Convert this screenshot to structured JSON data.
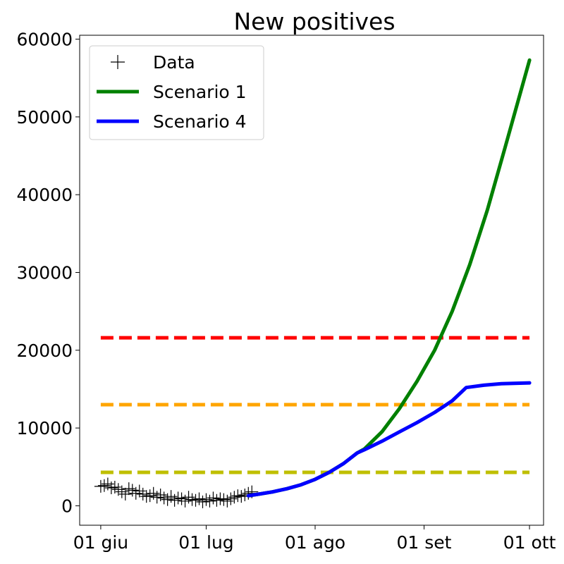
{
  "chart_data": {
    "type": "line",
    "title": "New positives",
    "xlabel": "",
    "ylabel": "",
    "x_ticks": [
      "01 giu",
      "01 lug",
      "01 ago",
      "01 set",
      "01 ott"
    ],
    "xlim_days": [
      -6,
      126
    ],
    "ylim": [
      -2500,
      60500
    ],
    "y_ticks": [
      0,
      10000,
      20000,
      30000,
      40000,
      50000,
      60000
    ],
    "grid": false,
    "legend": {
      "placement": "top-left",
      "entries": [
        "Data",
        "Scenario 1",
        "Scenario 4"
      ]
    },
    "data_points": {
      "name": "Data",
      "marker": "+",
      "color": "#000000",
      "x": [
        "2020-06-01",
        "2020-06-02",
        "2020-06-03",
        "2020-06-04",
        "2020-06-05",
        "2020-06-06",
        "2020-06-07",
        "2020-06-08",
        "2020-06-09",
        "2020-06-10",
        "2020-06-11",
        "2020-06-12",
        "2020-06-13",
        "2020-06-14",
        "2020-06-15",
        "2020-06-16",
        "2020-06-17",
        "2020-06-18",
        "2020-06-19",
        "2020-06-20",
        "2020-06-21",
        "2020-06-22",
        "2020-06-23",
        "2020-06-24",
        "2020-06-25",
        "2020-06-26",
        "2020-06-27",
        "2020-06-28",
        "2020-06-29",
        "2020-06-30",
        "2020-07-01",
        "2020-07-02",
        "2020-07-03",
        "2020-07-04",
        "2020-07-05",
        "2020-07-06",
        "2020-07-07",
        "2020-07-08",
        "2020-07-09",
        "2020-07-10",
        "2020-07-11",
        "2020-07-12",
        "2020-07-13",
        "2020-07-14"
      ],
      "y": [
        2500,
        2600,
        2800,
        2300,
        2400,
        2100,
        1800,
        1500,
        2200,
        2000,
        1600,
        1900,
        1500,
        1200,
        1300,
        1600,
        1100,
        1400,
        1000,
        800,
        1200,
        700,
        1000,
        900,
        600,
        1100,
        800,
        700,
        900,
        500,
        800,
        600,
        1000,
        700,
        900,
        800,
        600,
        900,
        1100,
        1300,
        1200,
        1400,
        1600,
        1800
      ]
    },
    "series": [
      {
        "name": "Scenario 1",
        "color": "#008000",
        "style": "solid",
        "x": [
          "2020-07-13",
          "2020-07-16",
          "2020-07-20",
          "2020-07-24",
          "2020-07-28",
          "2020-08-01",
          "2020-08-05",
          "2020-08-09",
          "2020-08-13",
          "2020-08-15",
          "2020-08-20",
          "2020-08-25",
          "2020-08-30",
          "2020-09-04",
          "2020-09-09",
          "2020-09-14",
          "2020-09-19",
          "2020-09-24",
          "2020-10-01"
        ],
        "y": [
          1300,
          1500,
          1800,
          2200,
          2700,
          3400,
          4300,
          5400,
          6800,
          7300,
          9500,
          12500,
          16000,
          20000,
          25000,
          31000,
          38000,
          46000,
          57300
        ]
      },
      {
        "name": "Scenario 4",
        "color": "#0000ff",
        "style": "solid",
        "x": [
          "2020-07-13",
          "2020-07-16",
          "2020-07-20",
          "2020-07-24",
          "2020-07-28",
          "2020-08-01",
          "2020-08-05",
          "2020-08-09",
          "2020-08-13",
          "2020-08-15",
          "2020-08-20",
          "2020-08-25",
          "2020-08-30",
          "2020-09-04",
          "2020-09-09",
          "2020-09-13",
          "2020-09-18",
          "2020-09-23",
          "2020-10-01"
        ],
        "y": [
          1300,
          1500,
          1800,
          2200,
          2700,
          3400,
          4300,
          5400,
          6800,
          7200,
          8300,
          9500,
          10700,
          12000,
          13500,
          15200,
          15500,
          15700,
          15800
        ]
      }
    ],
    "thresholds": [
      {
        "value": 21600,
        "color": "#ff0000",
        "style": "dashed"
      },
      {
        "value": 13000,
        "color": "#ffa500",
        "style": "dashed"
      },
      {
        "value": 4300,
        "color": "#bfbf00",
        "style": "dashed"
      }
    ],
    "threshold_range": [
      "2020-06-01",
      "2020-10-01"
    ]
  }
}
